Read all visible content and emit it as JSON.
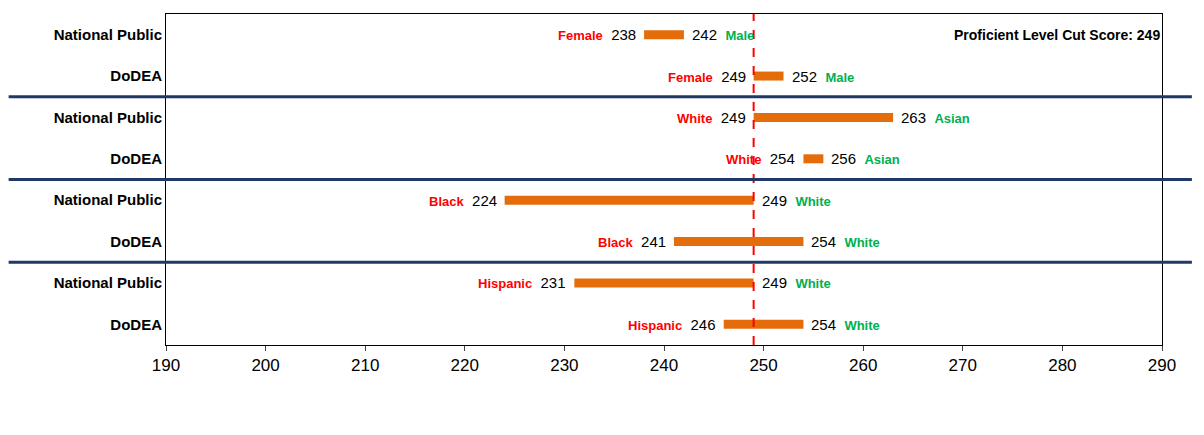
{
  "chart_data": {
    "type": "range_bar",
    "orientation": "horizontal",
    "categories": [
      "National Public",
      "DoDEA",
      "National Public",
      "DoDEA",
      "National Public",
      "DoDEA",
      "National Public",
      "DoDEA"
    ],
    "series": [
      {
        "labels": [
          "Female",
          "Female",
          "White",
          "White",
          "Black",
          "Black",
          "Hispanic",
          "Hispanic"
        ],
        "values": [
          238,
          249,
          249,
          254,
          224,
          241,
          231,
          246
        ],
        "color": "#ff0000"
      },
      {
        "labels": [
          "Male",
          "Male",
          "Asian",
          "Asian",
          "White",
          "White",
          "White",
          "White"
        ],
        "values": [
          242,
          252,
          263,
          256,
          249,
          254,
          249,
          254
        ],
        "color": "#00b050"
      }
    ],
    "color": "#e46c0a",
    "xlim": [
      190,
      290
    ],
    "xticks": [
      190,
      200,
      210,
      220,
      230,
      240,
      250,
      260,
      270,
      280,
      290
    ],
    "reference_line": {
      "value": 249,
      "label": "Proficient Level Cut Score: 249",
      "color": "#ff0000"
    },
    "data_labels": true,
    "grid": false
  }
}
